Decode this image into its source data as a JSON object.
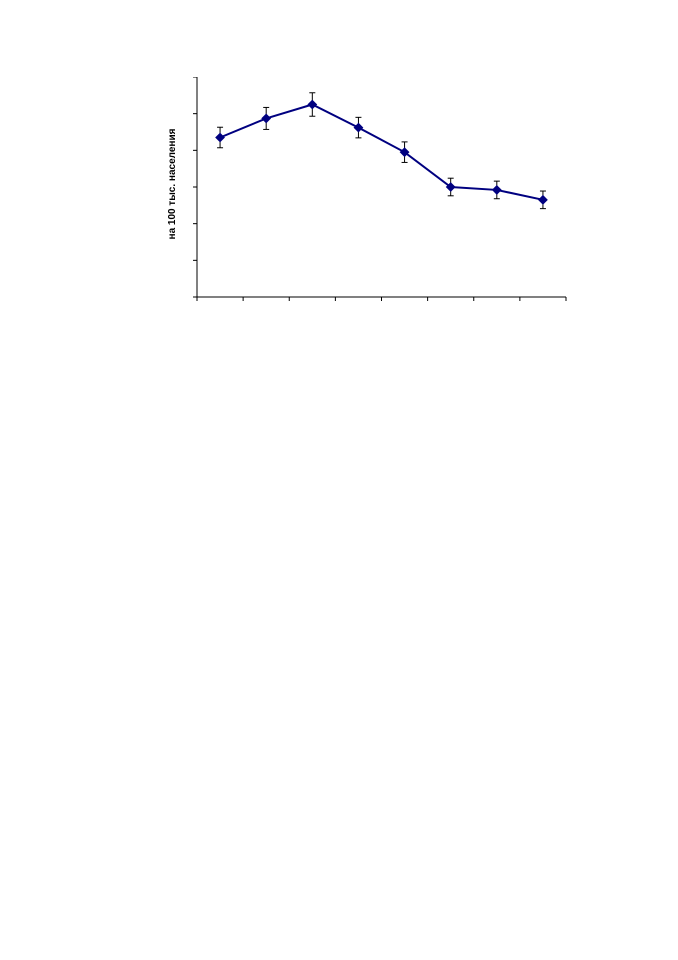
{
  "chart_data": {
    "type": "line",
    "title": "",
    "xlabel": "",
    "ylabel": "на 100 тыс. населения",
    "ylim": [
      0,
      6
    ],
    "y_tick_count": 7,
    "x_tick_count": 9,
    "grid": false,
    "x": [
      1,
      2,
      3,
      4,
      5,
      6,
      7,
      8
    ],
    "series": [
      {
        "values": [
          4.35,
          4.87,
          5.25,
          4.62,
          3.95,
          3.0,
          2.92,
          2.65
        ],
        "error": [
          0.28,
          0.3,
          0.32,
          0.28,
          0.28,
          0.24,
          0.24,
          0.24
        ],
        "color": "#000080",
        "marker": "diamond"
      }
    ]
  },
  "colors": {
    "series_line": "#000080",
    "axes": "#000000",
    "error_bars": "#000000"
  }
}
